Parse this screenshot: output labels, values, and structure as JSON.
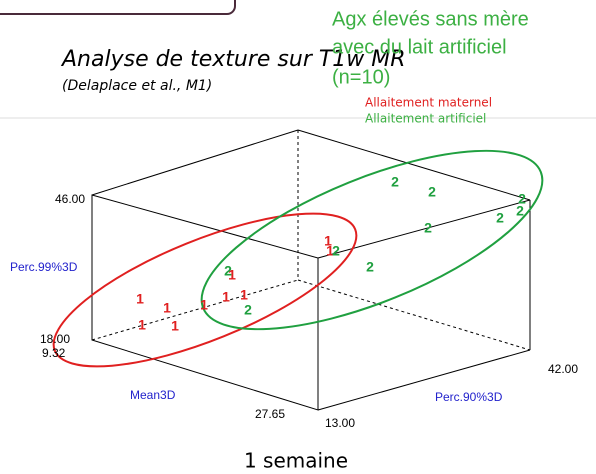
{
  "slide": {
    "note_lines": [
      "Agx élevés sans mère",
      "avec du lait artificiel",
      "(n=10)"
    ],
    "title": "Analyse de texture sur T1w MR",
    "subtitle": "(Delaplace et al., M1)",
    "legend": [
      "Allaitement maternel",
      "Allaitement artificiel"
    ],
    "plot": {
      "z_top": "46.00",
      "z_name": "Perc.99%3D",
      "z_bottom": "18.00",
      "x_min": "9.32",
      "x_name": "Mean3D",
      "x_max": "27.65",
      "y_min": "13.00",
      "y_name": "Perc.90%3D",
      "y_max": "42.00",
      "group1_points": [
        "1",
        "1",
        "1",
        "1",
        "1",
        "1",
        "1",
        "1",
        "1",
        "1"
      ],
      "group2_points": [
        "2",
        "2",
        "2",
        "2",
        "2",
        "2",
        "2",
        "2",
        "2",
        "2"
      ]
    },
    "caption": "1 semaine"
  }
}
